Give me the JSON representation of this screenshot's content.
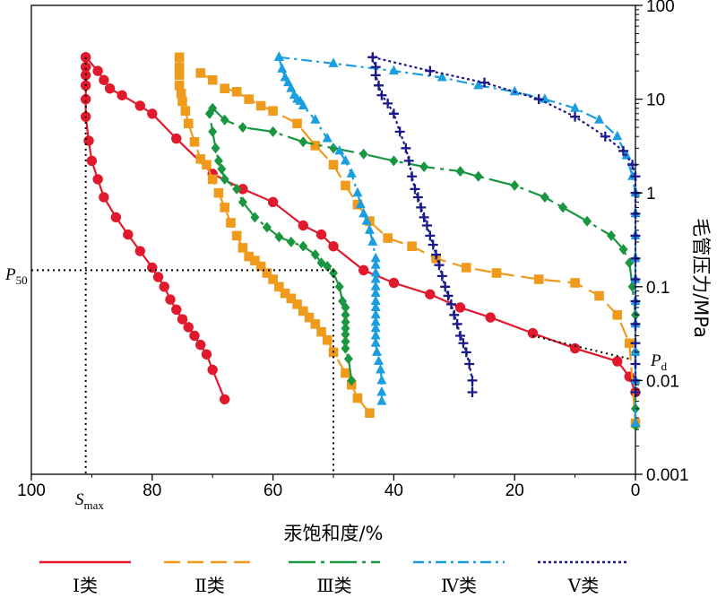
{
  "chart_data": {
    "type": "line",
    "title": "",
    "xlabel": "汞饱和度/%",
    "ylabel": "毛管压力/MPa",
    "xlim": [
      100,
      0
    ],
    "ylim": [
      0.001,
      100
    ],
    "yscale": "log",
    "x_ticks": [
      100,
      80,
      60,
      40,
      20,
      0
    ],
    "y_ticks": [
      "100",
      "10",
      "1",
      "0.1",
      "0.01",
      "0.001"
    ],
    "annotations": {
      "p50_label": "P",
      "p50_sub": "50",
      "p50": 0.15,
      "p50_sat": 50,
      "smax_label": "S",
      "smax_sub": "max",
      "smax": 91,
      "pd_label": "P",
      "pd_sub": "d",
      "pd_start": [
        17,
        0.03
      ],
      "pd_end": [
        1,
        0.017
      ]
    },
    "series": [
      {
        "name": "Ⅰ类",
        "color": "#e0192c",
        "dash": "",
        "marker": "circle",
        "curves": [
          [
            [
              68,
              0.0063
            ],
            [
              70,
              0.013
            ],
            [
              71,
              0.019
            ],
            [
              72,
              0.024
            ],
            [
              73,
              0.03
            ],
            [
              74,
              0.037
            ],
            [
              75,
              0.045
            ],
            [
              76,
              0.057
            ],
            [
              77,
              0.073
            ],
            [
              78,
              0.1
            ],
            [
              79,
              0.127
            ],
            [
              80,
              0.16
            ],
            [
              82,
              0.24
            ],
            [
              84,
              0.36
            ],
            [
              86,
              0.55
            ],
            [
              88,
              0.9
            ],
            [
              89,
              1.4
            ],
            [
              90,
              2.2
            ],
            [
              90.5,
              3.6
            ],
            [
              91,
              6.5
            ],
            [
              91,
              10
            ],
            [
              91,
              14
            ],
            [
              91,
              18
            ],
            [
              91,
              22
            ],
            [
              91,
              28
            ]
          ],
          [
            [
              91,
              28
            ],
            [
              89,
              20
            ],
            [
              88,
              16
            ],
            [
              87,
              13
            ],
            [
              85,
              11
            ],
            [
              82,
              8.5
            ],
            [
              80,
              7
            ],
            [
              76,
              3.8
            ],
            [
              70,
              1.6
            ],
            [
              65,
              1.1
            ],
            [
              60,
              0.8
            ],
            [
              55,
              0.45
            ],
            [
              52,
              0.36
            ],
            [
              50,
              0.27
            ],
            [
              45,
              0.15
            ],
            [
              40,
              0.11
            ],
            [
              34,
              0.083
            ],
            [
              29,
              0.06
            ],
            [
              24,
              0.047
            ],
            [
              17,
              0.032
            ],
            [
              10,
              0.022
            ],
            [
              3,
              0.016
            ],
            [
              1,
              0.011
            ],
            [
              0,
              0.0075
            ]
          ]
        ]
      },
      {
        "name": "Ⅱ类",
        "color": "#f09a1c",
        "dash": "18,8",
        "marker": "square",
        "curves": [
          [
            [
              44,
              0.0045
            ],
            [
              46,
              0.0065
            ],
            [
              47,
              0.009
            ],
            [
              48,
              0.012
            ],
            [
              50,
              0.02
            ],
            [
              51,
              0.027
            ],
            [
              52,
              0.033
            ],
            [
              53,
              0.04
            ],
            [
              54,
              0.047
            ],
            [
              55,
              0.055
            ],
            [
              56,
              0.065
            ],
            [
              57,
              0.075
            ],
            [
              58,
              0.085
            ],
            [
              59,
              0.1
            ],
            [
              60,
              0.12
            ],
            [
              61,
              0.14
            ],
            [
              62,
              0.165
            ],
            [
              63,
              0.19
            ],
            [
              64,
              0.21
            ],
            [
              65,
              0.26
            ],
            [
              66,
              0.35
            ],
            [
              67,
              0.48
            ],
            [
              68,
              0.7
            ],
            [
              69,
              1.0
            ],
            [
              70,
              1.4
            ],
            [
              71,
              2.0
            ],
            [
              72,
              2.3
            ],
            [
              73,
              3.5
            ],
            [
              74,
              5.5
            ],
            [
              74.5,
              7.5
            ],
            [
              75,
              9.5
            ],
            [
              75.2,
              11.5
            ],
            [
              75.5,
              14
            ],
            [
              75.5,
              18
            ],
            [
              75.5,
              22
            ],
            [
              75.5,
              28
            ]
          ],
          [
            [
              72,
              19
            ],
            [
              70,
              16
            ],
            [
              68,
              13
            ],
            [
              66,
              12
            ],
            [
              64,
              10
            ],
            [
              62,
              8.5
            ],
            [
              60,
              7.5
            ],
            [
              56,
              5.5
            ],
            [
              53,
              3.2
            ],
            [
              50,
              2.0
            ],
            [
              48,
              1.2
            ],
            [
              46,
              0.75
            ],
            [
              44,
              0.5
            ],
            [
              41,
              0.33
            ],
            [
              37,
              0.27
            ],
            [
              33,
              0.2
            ],
            [
              28,
              0.16
            ],
            [
              23,
              0.14
            ],
            [
              16,
              0.12
            ],
            [
              10,
              0.11
            ],
            [
              6,
              0.08
            ],
            [
              3,
              0.05
            ],
            [
              1,
              0.025
            ],
            [
              0,
              0.0035
            ]
          ]
        ]
      },
      {
        "name": "Ⅲ类",
        "color": "#1a9641",
        "dash": "30,6,4,6",
        "marker": "diamond",
        "curves": [
          [
            [
              47,
              0.01
            ],
            [
              47.5,
              0.017
            ],
            [
              48,
              0.022
            ],
            [
              48,
              0.026
            ],
            [
              48,
              0.031
            ],
            [
              48,
              0.036
            ],
            [
              48,
              0.042
            ],
            [
              48,
              0.05
            ],
            [
              48,
              0.06
            ],
            [
              48.5,
              0.07
            ],
            [
              49,
              0.1
            ],
            [
              50,
              0.14
            ],
            [
              51,
              0.165
            ],
            [
              52,
              0.18
            ],
            [
              53,
              0.22
            ],
            [
              55,
              0.27
            ],
            [
              57,
              0.3
            ],
            [
              59,
              0.34
            ],
            [
              61,
              0.43
            ],
            [
              63,
              0.55
            ],
            [
              65,
              0.8
            ],
            [
              66,
              1.1
            ],
            [
              68,
              1.4
            ],
            [
              68.5,
              1.8
            ],
            [
              69,
              2.2
            ],
            [
              69.5,
              3.0
            ],
            [
              70,
              4.5
            ],
            [
              70.5,
              7
            ]
          ],
          [
            [
              70,
              8
            ],
            [
              68,
              6
            ],
            [
              65,
              5
            ],
            [
              60,
              4.5
            ],
            [
              55,
              3.5
            ],
            [
              50,
              3
            ],
            [
              45,
              2.6
            ],
            [
              40,
              2.2
            ],
            [
              35,
              1.9
            ],
            [
              29,
              1.7
            ],
            [
              26,
              1.5
            ],
            [
              20,
              1.2
            ],
            [
              15,
              0.9
            ],
            [
              12,
              0.7
            ],
            [
              8,
              0.5
            ],
            [
              4,
              0.35
            ],
            [
              2,
              0.25
            ],
            [
              1,
              0.18
            ],
            [
              0.5,
              0.1
            ],
            [
              0,
              0.05
            ],
            [
              0,
              0.02
            ],
            [
              0,
              0.005
            ],
            [
              0,
              0.0033
            ]
          ]
        ]
      },
      {
        "name": "Ⅳ类",
        "color": "#1a9ee0",
        "dash": "12,5,3,5",
        "marker": "triangle",
        "curves": [
          [
            [
              59,
              28
            ],
            [
              58.5,
              21
            ],
            [
              58,
              17
            ],
            [
              57.5,
              15
            ],
            [
              57,
              13
            ],
            [
              56.5,
              11
            ],
            [
              56,
              10
            ],
            [
              55.5,
              9.5
            ],
            [
              55,
              8.5
            ],
            [
              53,
              6
            ],
            [
              51,
              3.8
            ],
            [
              49,
              2.8
            ],
            [
              48,
              2.2
            ],
            [
              47,
              1.6
            ],
            [
              46,
              1.0
            ],
            [
              45.5,
              0.75
            ],
            [
              45,
              0.6
            ],
            [
              44.5,
              0.5
            ],
            [
              44,
              0.4
            ],
            [
              43.5,
              0.3
            ],
            [
              43,
              0.2
            ],
            [
              43,
              0.17
            ],
            [
              43,
              0.14
            ],
            [
              43,
              0.12
            ],
            [
              43,
              0.1
            ],
            [
              43,
              0.085
            ],
            [
              43,
              0.07
            ],
            [
              43,
              0.06
            ],
            [
              43,
              0.05
            ],
            [
              43,
              0.042
            ],
            [
              43,
              0.036
            ],
            [
              43,
              0.03
            ],
            [
              43,
              0.025
            ],
            [
              42.8,
              0.02
            ],
            [
              42.5,
              0.016
            ],
            [
              42.2,
              0.013
            ],
            [
              42,
              0.01
            ],
            [
              42,
              0.0075
            ],
            [
              42,
              0.006
            ]
          ],
          [
            [
              59,
              28
            ],
            [
              50,
              24
            ],
            [
              40,
              20
            ],
            [
              32,
              17
            ],
            [
              26,
              14
            ],
            [
              20,
              12
            ],
            [
              15,
              10
            ],
            [
              10,
              8
            ],
            [
              6,
              6
            ],
            [
              3,
              4
            ],
            [
              1.5,
              2.5
            ],
            [
              0.5,
              1.5
            ],
            [
              0,
              1.0
            ],
            [
              0,
              0.6
            ],
            [
              0,
              0.35
            ],
            [
              0,
              0.2
            ],
            [
              0,
              0.12
            ],
            [
              0,
              0.07
            ],
            [
              0,
              0.04
            ],
            [
              0,
              0.02
            ],
            [
              0,
              0.01
            ],
            [
              0,
              0.0035
            ]
          ]
        ]
      },
      {
        "name": "Ⅴ类",
        "color": "#1a1a8a",
        "dash": "3,3",
        "marker": "plus",
        "curves": [
          [
            [
              27,
              0.0075
            ],
            [
              27,
              0.01
            ],
            [
              27.5,
              0.015
            ],
            [
              28,
              0.02
            ],
            [
              28.5,
              0.025
            ],
            [
              29,
              0.03
            ],
            [
              29.5,
              0.04
            ],
            [
              30,
              0.05
            ],
            [
              30.5,
              0.065
            ],
            [
              31,
              0.08
            ],
            [
              31.5,
              0.1
            ],
            [
              32,
              0.13
            ],
            [
              32.5,
              0.17
            ],
            [
              33,
              0.22
            ],
            [
              33.5,
              0.28
            ],
            [
              34,
              0.35
            ],
            [
              34.5,
              0.45
            ],
            [
              35,
              0.55
            ],
            [
              35.5,
              0.7
            ],
            [
              36,
              0.9
            ],
            [
              36.5,
              1.1
            ],
            [
              37,
              1.5
            ],
            [
              37.5,
              2.2
            ],
            [
              38,
              3.0
            ],
            [
              39,
              4.5
            ],
            [
              40,
              7
            ],
            [
              41,
              9
            ],
            [
              42,
              11
            ],
            [
              42.5,
              14
            ],
            [
              43,
              18
            ],
            [
              43,
              22
            ],
            [
              43.5,
              28
            ]
          ],
          [
            [
              43.5,
              28
            ],
            [
              34,
              20
            ],
            [
              25,
              15
            ],
            [
              16,
              10
            ],
            [
              10,
              6.5
            ],
            [
              5,
              4
            ],
            [
              2,
              2.8
            ],
            [
              0.5,
              2
            ],
            [
              0,
              1.5
            ],
            [
              0,
              1.0
            ],
            [
              0,
              0.6
            ],
            [
              0,
              0.35
            ],
            [
              0,
              0.2
            ],
            [
              0,
              0.12
            ],
            [
              0,
              0.07
            ],
            [
              0,
              0.04
            ],
            [
              0,
              0.025
            ],
            [
              0,
              0.015
            ],
            [
              0,
              0.01
            ],
            [
              0,
              0.0075
            ]
          ]
        ]
      }
    ]
  }
}
